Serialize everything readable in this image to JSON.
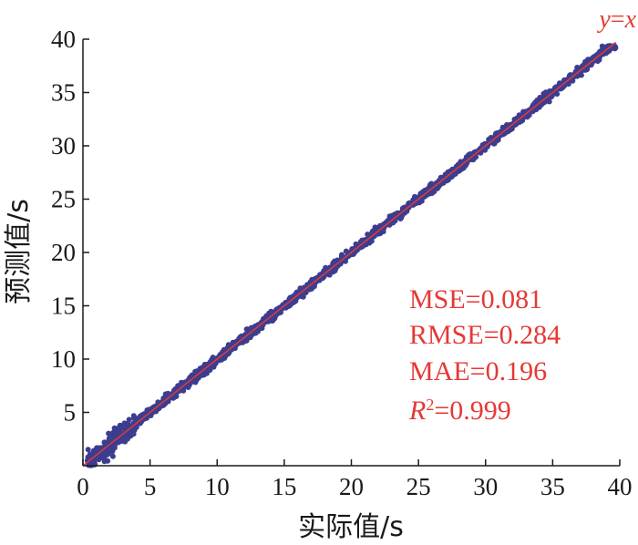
{
  "chart_data": {
    "type": "scatter",
    "title": "",
    "xlabel": "实际值/s",
    "ylabel": "预测值/s",
    "xlim": [
      0,
      40
    ],
    "ylim": [
      0,
      40
    ],
    "xticks": [
      "0",
      "5",
      "10",
      "15",
      "20",
      "25",
      "30",
      "35",
      "40"
    ],
    "yticks": [
      "5",
      "10",
      "15",
      "20",
      "25",
      "30",
      "35",
      "40"
    ],
    "grid": false,
    "point_color": "#3d3d8f",
    "reference_line": {
      "label": "y=x",
      "label_y": "y",
      "label_eq": "=",
      "label_x": "x",
      "color": "#e53935"
    },
    "metrics": {
      "mse": "MSE=0.081",
      "rmse": "RMSE=0.284",
      "mae": "MAE=0.196",
      "r2_symbol": "R",
      "r2_sup": "2",
      "r2_value": "=0.999"
    }
  }
}
